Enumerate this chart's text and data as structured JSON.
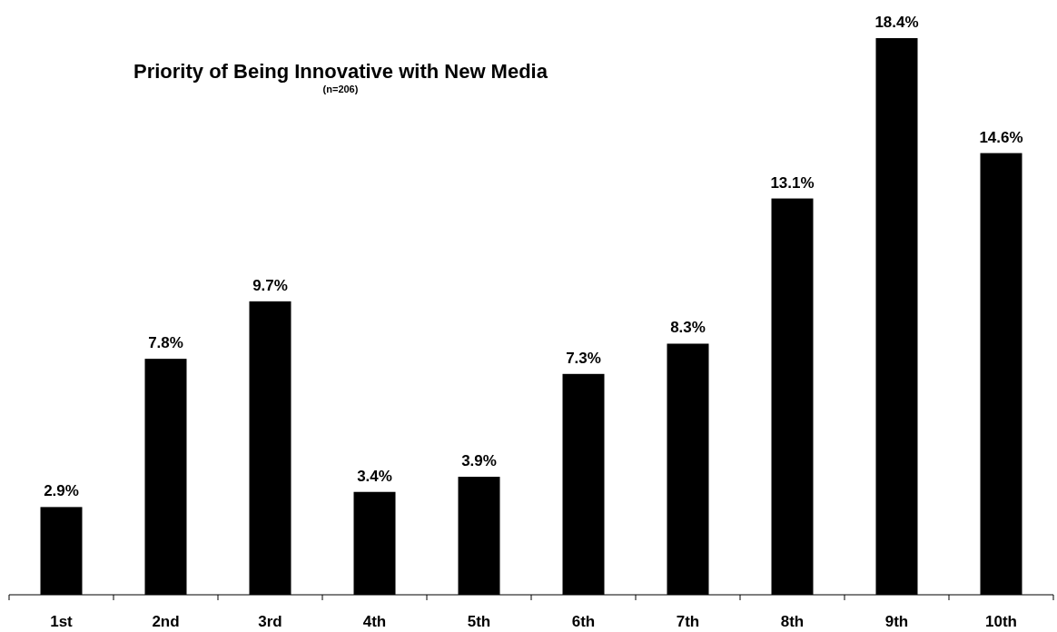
{
  "chart_data": {
    "type": "bar",
    "title": "Priority of Being Innovative with New Media",
    "subtitle": "(n=206)",
    "categories": [
      "1st",
      "2nd",
      "3rd",
      "4th",
      "5th",
      "6th",
      "7th",
      "8th",
      "9th",
      "10th"
    ],
    "values": [
      2.9,
      7.8,
      9.7,
      3.4,
      3.9,
      7.3,
      8.3,
      13.1,
      18.4,
      14.6
    ],
    "value_labels": [
      "2.9%",
      "7.8%",
      "9.7%",
      "3.4%",
      "3.9%",
      "7.3%",
      "8.3%",
      "13.1%",
      "18.4%",
      "14.6%"
    ],
    "color": "#000000"
  }
}
